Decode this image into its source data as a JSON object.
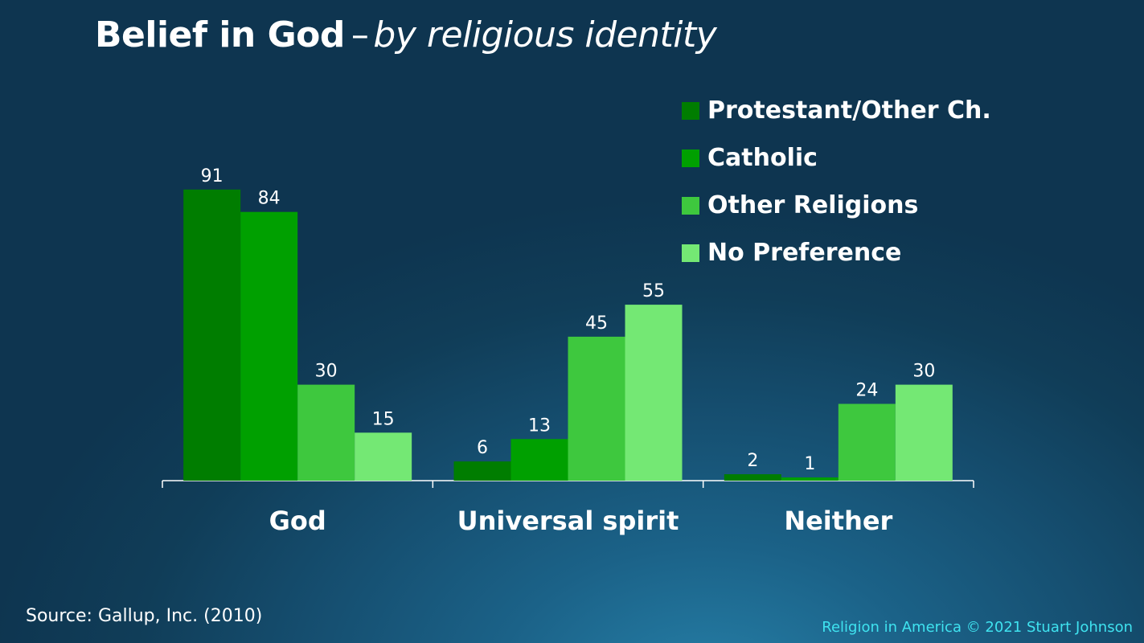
{
  "slide": {
    "title_main": "Belief in God",
    "title_sep": "–",
    "title_sub": "by religious identity",
    "source": "Source: Gallup, Inc. (2010)",
    "footer": "Religion in America © 2021 Stuart Johnson"
  },
  "legend_position": "top-right",
  "chart_data": {
    "type": "bar",
    "title": "Belief in God – by religious identity",
    "xlabel": "",
    "ylabel": "",
    "ylim": [
      0,
      100
    ],
    "grid": false,
    "categories": [
      "God",
      "Universal spirit",
      "Neither"
    ],
    "series": [
      {
        "name": "Protestant/Other Ch.",
        "color": "#007d00",
        "values": [
          91,
          6,
          2
        ]
      },
      {
        "name": "Catholic",
        "color": "#00a000",
        "values": [
          84,
          13,
          1
        ]
      },
      {
        "name": "Other Religions",
        "color": "#3ec83e",
        "values": [
          30,
          45,
          24
        ]
      },
      {
        "name": "No Preference",
        "color": "#74e874",
        "values": [
          15,
          55,
          30
        ]
      }
    ]
  }
}
